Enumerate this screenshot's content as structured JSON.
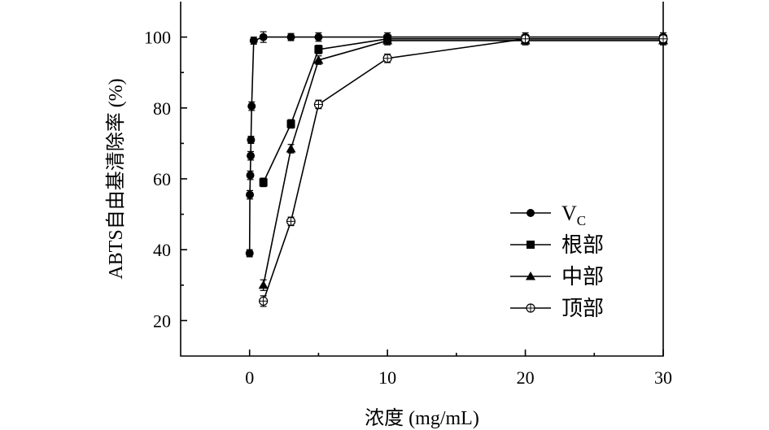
{
  "chart_data": {
    "type": "line",
    "xlabel": "浓度 (mg/mL)",
    "ylabel": "ABTS自由基清除率 (%)",
    "xlim": [
      -5,
      30
    ],
    "ylim": [
      10,
      110
    ],
    "xticks": [
      "0",
      "10",
      "20",
      "30"
    ],
    "yticks": [
      "20",
      "40",
      "60",
      "80",
      "100"
    ],
    "legend_position": "right-middle",
    "series": [
      {
        "name": "V",
        "name_sub": "C",
        "marker": "circle-filled",
        "x": [
          0.0,
          0.02,
          0.05,
          0.08,
          0.1,
          0.15,
          0.3,
          1.0,
          3.0,
          5.0,
          10.0,
          20.0,
          30.0
        ],
        "y": [
          39.0,
          55.5,
          61.0,
          66.5,
          71.0,
          80.5,
          99.0,
          100.0,
          100.0,
          100.0,
          100.0,
          100.0,
          100.0
        ],
        "err": [
          1.0,
          1.2,
          1.2,
          1.2,
          1.0,
          1.2,
          1.0,
          1.5,
          1.0,
          1.2,
          1.2,
          1.2,
          1.2
        ]
      },
      {
        "name": "根部",
        "marker": "square-filled",
        "x": [
          1.0,
          3.0,
          5.0,
          10.0,
          20.0,
          30.0
        ],
        "y": [
          59.0,
          75.5,
          96.5,
          99.5,
          99.5,
          99.5
        ],
        "err": [
          1.2,
          1.2,
          1.2,
          1.2,
          1.2,
          1.2
        ]
      },
      {
        "name": "中部",
        "marker": "triangle-filled",
        "x": [
          1.0,
          3.0,
          5.0,
          10.0,
          20.0,
          30.0
        ],
        "y": [
          30.0,
          68.5,
          93.5,
          99.0,
          99.0,
          99.0
        ],
        "err": [
          1.5,
          1.2,
          1.2,
          1.2,
          1.2,
          1.2
        ]
      },
      {
        "name": "顶部",
        "marker": "circle-open-cross",
        "x": [
          1.0,
          3.0,
          5.0,
          10.0,
          20.0,
          30.0
        ],
        "y": [
          25.5,
          48.0,
          81.0,
          94.0,
          99.5,
          99.5
        ],
        "err": [
          1.5,
          1.2,
          1.2,
          1.2,
          1.2,
          1.2
        ]
      }
    ]
  }
}
